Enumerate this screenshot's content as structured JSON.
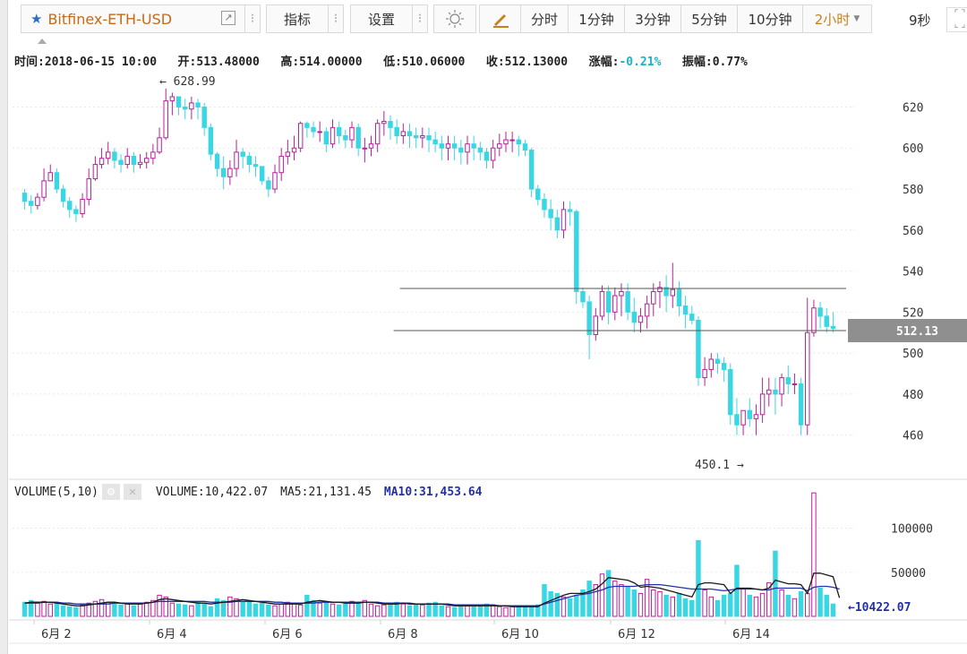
{
  "toolbar": {
    "symbol": "Bitfinex-ETH-USD",
    "indicators": "指标",
    "settings": "设置",
    "periods": [
      "分时",
      "1分钟",
      "3分钟",
      "5分钟",
      "10分钟"
    ],
    "selected_period": "2小时",
    "countdown": "9秒"
  },
  "info_bar": {
    "time_label": "时间:",
    "time": "2018-06-15 10:00",
    "open_label": "开:",
    "open": "513.48000",
    "high_label": "高:",
    "high": "514.00000",
    "low_label": "低:",
    "low": "510.06000",
    "close_label": "收:",
    "close": "512.13000",
    "change_label": "涨幅:",
    "change": "-0.21%",
    "amp_label": "振幅:",
    "amplitude": "0.77%"
  },
  "volume_bar": {
    "title": "VOLUME(5,10)",
    "volume_text": "VOLUME:10,422.07",
    "ma5_text": "MA5:21,131.45",
    "ma10_text": "MA10:31,453.64"
  },
  "colors": {
    "up": "#b8209a",
    "down": "#39d7e3",
    "ma5": "#1a1a1a",
    "ma10": "#2430a8",
    "accent": "#c4811f"
  },
  "chart_data": {
    "type": "candlestick",
    "price_ticks": [
      620,
      600,
      580,
      560,
      540,
      520,
      500,
      480,
      460
    ],
    "price_range": [
      445,
      632
    ],
    "volume_ticks": [
      100000,
      50000
    ],
    "volume_range": [
      0,
      130000
    ],
    "x_labels": [
      "6月 2",
      "6月 4",
      "6月 6",
      "6月 8",
      "6月 10",
      "6月 12",
      "6月 14"
    ],
    "last_price": "512.13",
    "max_label": "628.99",
    "min_label": "450.1",
    "last_volume": "10422.07",
    "hlines": [
      531.5,
      511
    ],
    "volume_range_note": null,
    "opens": [
      578,
      574,
      572,
      576,
      584,
      588,
      580,
      574,
      570,
      568,
      575,
      585,
      592,
      595,
      598,
      594,
      592,
      596,
      592,
      593,
      595,
      598,
      605,
      623,
      625,
      620,
      619,
      622,
      620,
      610,
      597,
      590,
      586,
      590,
      598,
      596,
      592,
      591,
      584,
      580,
      588,
      596,
      598,
      600,
      612,
      610,
      608,
      608,
      602,
      610,
      606,
      604,
      610,
      600,
      600,
      602,
      612,
      613,
      610,
      606,
      608,
      606,
      605,
      606,
      604,
      602,
      600,
      602,
      600,
      598,
      602,
      600,
      598,
      594,
      600,
      602,
      604,
      604,
      602,
      599,
      580,
      575,
      570,
      566,
      560,
      570,
      569,
      530,
      525,
      509,
      518,
      530,
      520,
      528,
      530,
      520,
      515,
      518,
      524,
      530,
      532,
      528,
      531,
      523,
      519,
      516,
      488,
      492,
      497,
      495,
      492,
      470,
      465,
      472,
      468,
      470,
      480,
      482,
      480,
      488,
      485,
      485,
      465,
      510,
      522,
      518,
      513
    ],
    "closes": [
      574,
      572,
      576,
      584,
      588,
      580,
      574,
      570,
      568,
      575,
      585,
      592,
      595,
      598,
      594,
      592,
      596,
      592,
      593,
      595,
      598,
      605,
      623,
      625,
      620,
      619,
      622,
      620,
      610,
      597,
      590,
      586,
      590,
      598,
      596,
      592,
      591,
      584,
      580,
      588,
      596,
      598,
      600,
      612,
      610,
      608,
      608,
      602,
      610,
      606,
      604,
      610,
      600,
      600,
      602,
      612,
      613,
      610,
      606,
      608,
      606,
      605,
      606,
      604,
      602,
      600,
      602,
      600,
      598,
      602,
      600,
      598,
      594,
      600,
      602,
      604,
      604,
      602,
      599,
      580,
      575,
      570,
      566,
      560,
      570,
      569,
      530,
      525,
      509,
      518,
      530,
      520,
      528,
      530,
      520,
      515,
      518,
      524,
      530,
      532,
      528,
      531,
      523,
      519,
      516,
      488,
      492,
      497,
      495,
      492,
      470,
      465,
      472,
      468,
      470,
      480,
      482,
      480,
      488,
      485,
      485,
      465,
      510,
      522,
      518,
      513,
      512
    ],
    "highs": [
      580,
      577,
      578,
      590,
      592,
      590,
      582,
      576,
      572,
      578,
      590,
      596,
      600,
      603,
      600,
      597,
      600,
      598,
      597,
      598,
      602,
      610,
      629,
      627,
      625,
      624,
      625,
      624,
      622,
      612,
      598,
      596,
      594,
      604,
      600,
      598,
      596,
      591,
      586,
      592,
      600,
      604,
      606,
      613,
      613,
      613,
      613,
      610,
      614,
      613,
      609,
      613,
      612,
      605,
      606,
      614,
      618,
      616,
      614,
      612,
      612,
      610,
      610,
      610,
      608,
      606,
      606,
      606,
      604,
      606,
      606,
      603,
      600,
      604,
      607,
      608,
      608,
      606,
      604,
      600,
      582,
      578,
      575,
      570,
      574,
      574,
      570,
      532,
      528,
      522,
      533,
      533,
      532,
      534,
      534,
      527,
      522,
      528,
      534,
      535,
      538,
      544,
      535,
      528,
      523,
      518,
      498,
      500,
      500,
      498,
      495,
      478,
      472,
      478,
      475,
      488,
      488,
      488,
      490,
      494,
      490,
      488,
      527,
      526,
      525,
      522,
      520
    ],
    "lows": [
      570,
      568,
      570,
      574,
      584,
      578,
      571,
      566,
      564,
      566,
      572,
      584,
      590,
      592,
      590,
      588,
      590,
      588,
      590,
      590,
      592,
      597,
      604,
      616,
      616,
      614,
      614,
      614,
      606,
      594,
      586,
      580,
      582,
      586,
      590,
      588,
      586,
      582,
      576,
      578,
      584,
      592,
      594,
      598,
      605,
      605,
      603,
      598,
      600,
      602,
      600,
      600,
      596,
      593,
      596,
      598,
      606,
      604,
      602,
      602,
      600,
      600,
      600,
      598,
      598,
      594,
      594,
      594,
      592,
      592,
      594,
      594,
      590,
      590,
      596,
      598,
      598,
      596,
      596,
      576,
      572,
      566,
      560,
      556,
      556,
      562,
      524,
      522,
      497,
      506,
      516,
      514,
      516,
      518,
      516,
      510,
      510,
      512,
      518,
      522,
      520,
      522,
      518,
      512,
      514,
      484,
      484,
      488,
      490,
      486,
      465,
      460,
      460,
      464,
      460,
      466,
      474,
      470,
      474,
      480,
      480,
      460,
      460,
      508,
      512,
      510,
      510
    ],
    "volumes": [
      16,
      18,
      15,
      17,
      14,
      16,
      12,
      11,
      10,
      13,
      15,
      17,
      19,
      16,
      14,
      13,
      15,
      12,
      14,
      16,
      18,
      24,
      22,
      15,
      14,
      13,
      12,
      16,
      14,
      11,
      20,
      18,
      22,
      20,
      17,
      16,
      14,
      15,
      13,
      12,
      14,
      16,
      15,
      13,
      24,
      18,
      15,
      16,
      14,
      13,
      15,
      17,
      16,
      18,
      14,
      12,
      13,
      15,
      16,
      14,
      12,
      14,
      13,
      15,
      16,
      12,
      11,
      10,
      13,
      12,
      11,
      12,
      14,
      13,
      11,
      10,
      12,
      11,
      12,
      10,
      13,
      36,
      28,
      26,
      22,
      20,
      24,
      30,
      40,
      36,
      48,
      52,
      40,
      36,
      34,
      30,
      26,
      42,
      30,
      28,
      24,
      22,
      26,
      20,
      18,
      86,
      30,
      22,
      18,
      24,
      26,
      58,
      32,
      24,
      22,
      26,
      38,
      74,
      30,
      24,
      20,
      28,
      26,
      140,
      32,
      24,
      14,
      10
    ],
    "ma5": [
      15,
      16,
      16,
      16,
      16,
      15,
      14,
      13,
      12,
      12,
      13,
      14,
      15,
      16,
      16,
      15,
      14,
      14,
      14,
      15,
      16,
      19,
      20,
      19,
      18,
      17,
      16,
      15,
      15,
      14,
      15,
      16,
      17,
      18,
      19,
      18,
      17,
      16,
      15,
      14,
      14,
      14,
      14,
      14,
      16,
      17,
      18,
      17,
      16,
      16,
      15,
      15,
      15,
      16,
      16,
      15,
      14,
      14,
      14,
      15,
      14,
      14,
      14,
      14,
      14,
      14,
      13,
      12,
      12,
      12,
      12,
      12,
      12,
      12,
      12,
      12,
      11,
      11,
      11,
      11,
      11,
      15,
      18,
      21,
      24,
      26,
      26,
      26,
      28,
      31,
      37,
      44,
      43,
      42,
      41,
      38,
      33,
      34,
      33,
      32,
      30,
      28,
      26,
      24,
      22,
      36,
      38,
      38,
      37,
      36,
      26,
      32,
      32,
      32,
      31,
      30,
      32,
      41,
      39,
      37,
      37,
      36,
      26,
      49,
      49,
      47,
      45,
      21
    ],
    "ma10": [
      15,
      15,
      15,
      16,
      16,
      16,
      15,
      15,
      14,
      14,
      14,
      14,
      14,
      14,
      15,
      15,
      15,
      15,
      15,
      15,
      16,
      17,
      17,
      17,
      17,
      17,
      17,
      17,
      17,
      16,
      16,
      16,
      16,
      17,
      17,
      17,
      17,
      17,
      17,
      16,
      16,
      15,
      15,
      15,
      15,
      15,
      16,
      16,
      16,
      16,
      16,
      16,
      16,
      16,
      16,
      16,
      15,
      15,
      15,
      15,
      15,
      14,
      14,
      14,
      14,
      14,
      14,
      13,
      13,
      13,
      13,
      13,
      13,
      13,
      12,
      12,
      12,
      12,
      12,
      12,
      12,
      14,
      16,
      18,
      20,
      22,
      24,
      25,
      26,
      28,
      30,
      33,
      34,
      34,
      34,
      34,
      35,
      36,
      36,
      36,
      35,
      34,
      33,
      32,
      31,
      31,
      31,
      31,
      30,
      29,
      30,
      31,
      31,
      31,
      31,
      30,
      30,
      32,
      32,
      32,
      32,
      32,
      29,
      33,
      34,
      34,
      33,
      31
    ]
  }
}
